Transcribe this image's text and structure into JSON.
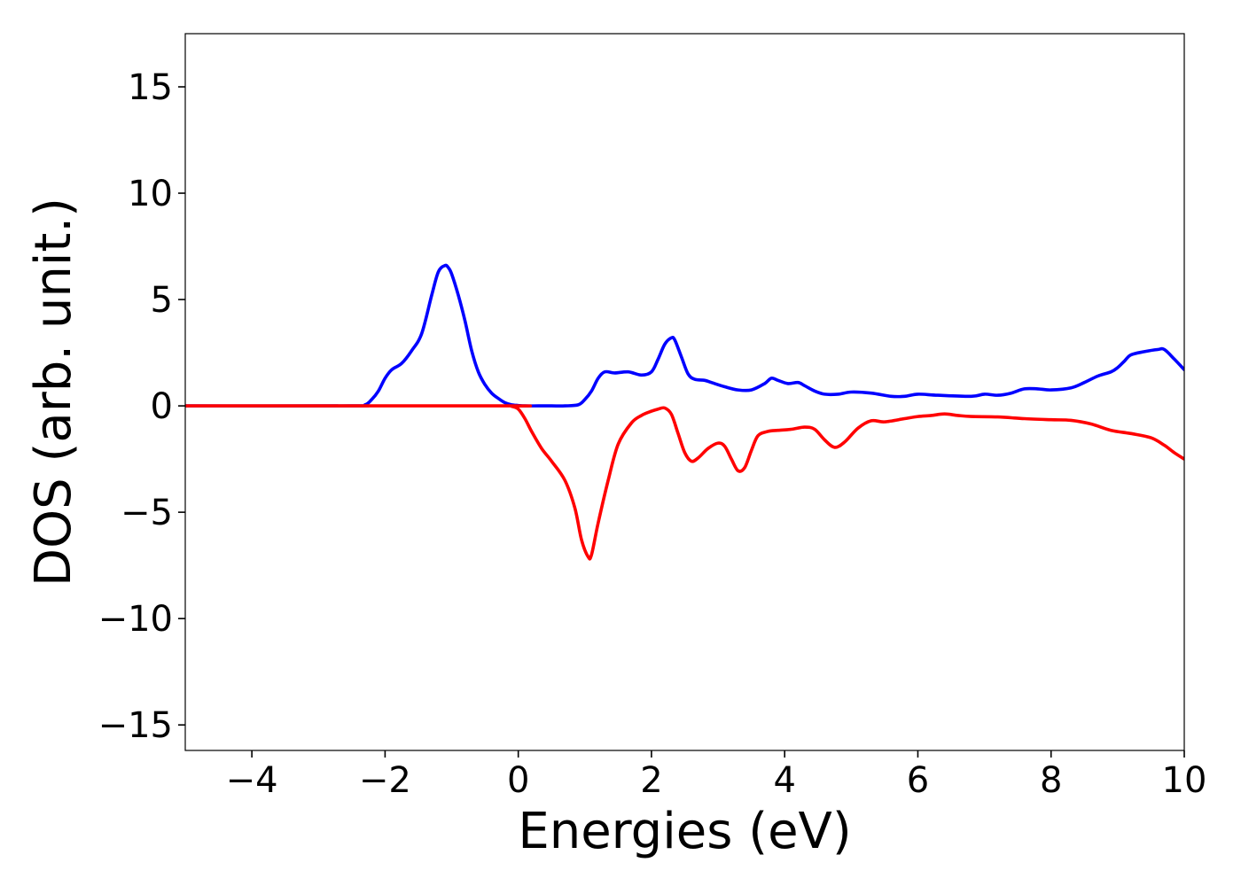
{
  "chart_data": {
    "type": "line",
    "xlabel": "Energies (eV)",
    "ylabel": "DOS (arb. unit.)",
    "xlim": [
      -5,
      10
    ],
    "ylim": [
      -16.2,
      17.5
    ],
    "x_ticks": [
      -4,
      -2,
      0,
      2,
      4,
      6,
      8,
      10
    ],
    "x_tick_labels": [
      "−4",
      "−2",
      "0",
      "2",
      "4",
      "6",
      "8",
      "10"
    ],
    "y_ticks": [
      -15,
      -10,
      -5,
      0,
      5,
      10,
      15
    ],
    "y_tick_labels": [
      "−15",
      "−10",
      "−5",
      "0",
      "5",
      "10",
      "15"
    ],
    "grid": false,
    "legend": "none",
    "series": [
      {
        "color": "#0000ff",
        "x": [
          -5,
          -2.5,
          -2.3,
          -2.2,
          -2.1,
          -2.0,
          -1.9,
          -1.75,
          -1.6,
          -1.45,
          -1.3,
          -1.2,
          -1.1,
          -1.05,
          -1.0,
          -0.9,
          -0.8,
          -0.7,
          -0.6,
          -0.5,
          -0.4,
          -0.3,
          -0.2,
          -0.1,
          0,
          0.1,
          0.3,
          0.5,
          0.7,
          0.9,
          1.0,
          1.1,
          1.2,
          1.3,
          1.45,
          1.65,
          1.85,
          2.0,
          2.1,
          2.2,
          2.3,
          2.35,
          2.45,
          2.55,
          2.65,
          2.8,
          2.9,
          3.1,
          3.3,
          3.5,
          3.7,
          3.8,
          3.9,
          4.05,
          4.2,
          4.3,
          4.45,
          4.6,
          4.8,
          5.0,
          5.3,
          5.6,
          5.8,
          6.0,
          6.3,
          6.8,
          7.0,
          7.2,
          7.4,
          7.6,
          7.8,
          8.0,
          8.3,
          8.5,
          8.7,
          8.9,
          9.0,
          9.1,
          9.2,
          9.4,
          9.6,
          9.7,
          9.85,
          10
        ],
        "values": [
          0,
          0,
          0.05,
          0.3,
          0.7,
          1.3,
          1.7,
          2.0,
          2.6,
          3.4,
          5.2,
          6.3,
          6.6,
          6.5,
          6.2,
          5.2,
          4.0,
          2.6,
          1.6,
          1.0,
          0.6,
          0.35,
          0.15,
          0.05,
          0.02,
          0,
          0,
          0,
          0,
          0.05,
          0.3,
          0.7,
          1.3,
          1.6,
          1.55,
          1.6,
          1.45,
          1.6,
          2.2,
          2.9,
          3.2,
          3.1,
          2.3,
          1.5,
          1.25,
          1.2,
          1.1,
          0.9,
          0.75,
          0.75,
          1.05,
          1.3,
          1.2,
          1.05,
          1.1,
          0.95,
          0.7,
          0.55,
          0.55,
          0.65,
          0.6,
          0.45,
          0.45,
          0.55,
          0.5,
          0.45,
          0.55,
          0.5,
          0.6,
          0.8,
          0.8,
          0.75,
          0.85,
          1.1,
          1.4,
          1.6,
          1.8,
          2.1,
          2.4,
          2.55,
          2.65,
          2.65,
          2.2,
          1.7
        ]
      },
      {
        "color": "#ff0000",
        "x": [
          -5,
          -0.2,
          -0.1,
          0,
          0.1,
          0.2,
          0.35,
          0.5,
          0.7,
          0.85,
          0.95,
          1.05,
          1.1,
          1.2,
          1.35,
          1.5,
          1.7,
          1.85,
          2.0,
          2.1,
          2.2,
          2.3,
          2.4,
          2.5,
          2.6,
          2.7,
          2.85,
          3.0,
          3.1,
          3.2,
          3.3,
          3.4,
          3.5,
          3.6,
          3.75,
          3.9,
          4.1,
          4.3,
          4.45,
          4.6,
          4.75,
          4.9,
          5.1,
          5.3,
          5.5,
          5.8,
          6.0,
          6.2,
          6.4,
          6.6,
          6.8,
          7.2,
          7.6,
          8.0,
          8.3,
          8.6,
          8.9,
          9.2,
          9.5,
          9.7,
          9.85,
          10
        ],
        "values": [
          0,
          0,
          -0.02,
          -0.15,
          -0.6,
          -1.2,
          -2.0,
          -2.6,
          -3.5,
          -4.8,
          -6.3,
          -7.1,
          -7.0,
          -5.5,
          -3.5,
          -1.8,
          -0.8,
          -0.45,
          -0.25,
          -0.15,
          -0.1,
          -0.4,
          -1.3,
          -2.2,
          -2.6,
          -2.45,
          -2.0,
          -1.75,
          -1.9,
          -2.5,
          -3.05,
          -2.9,
          -2.1,
          -1.4,
          -1.2,
          -1.15,
          -1.1,
          -1.0,
          -1.1,
          -1.6,
          -1.95,
          -1.7,
          -1.05,
          -0.7,
          -0.75,
          -0.6,
          -0.5,
          -0.45,
          -0.38,
          -0.45,
          -0.5,
          -0.52,
          -0.6,
          -0.65,
          -0.68,
          -0.85,
          -1.15,
          -1.3,
          -1.5,
          -1.85,
          -2.2,
          -2.5
        ]
      }
    ]
  }
}
